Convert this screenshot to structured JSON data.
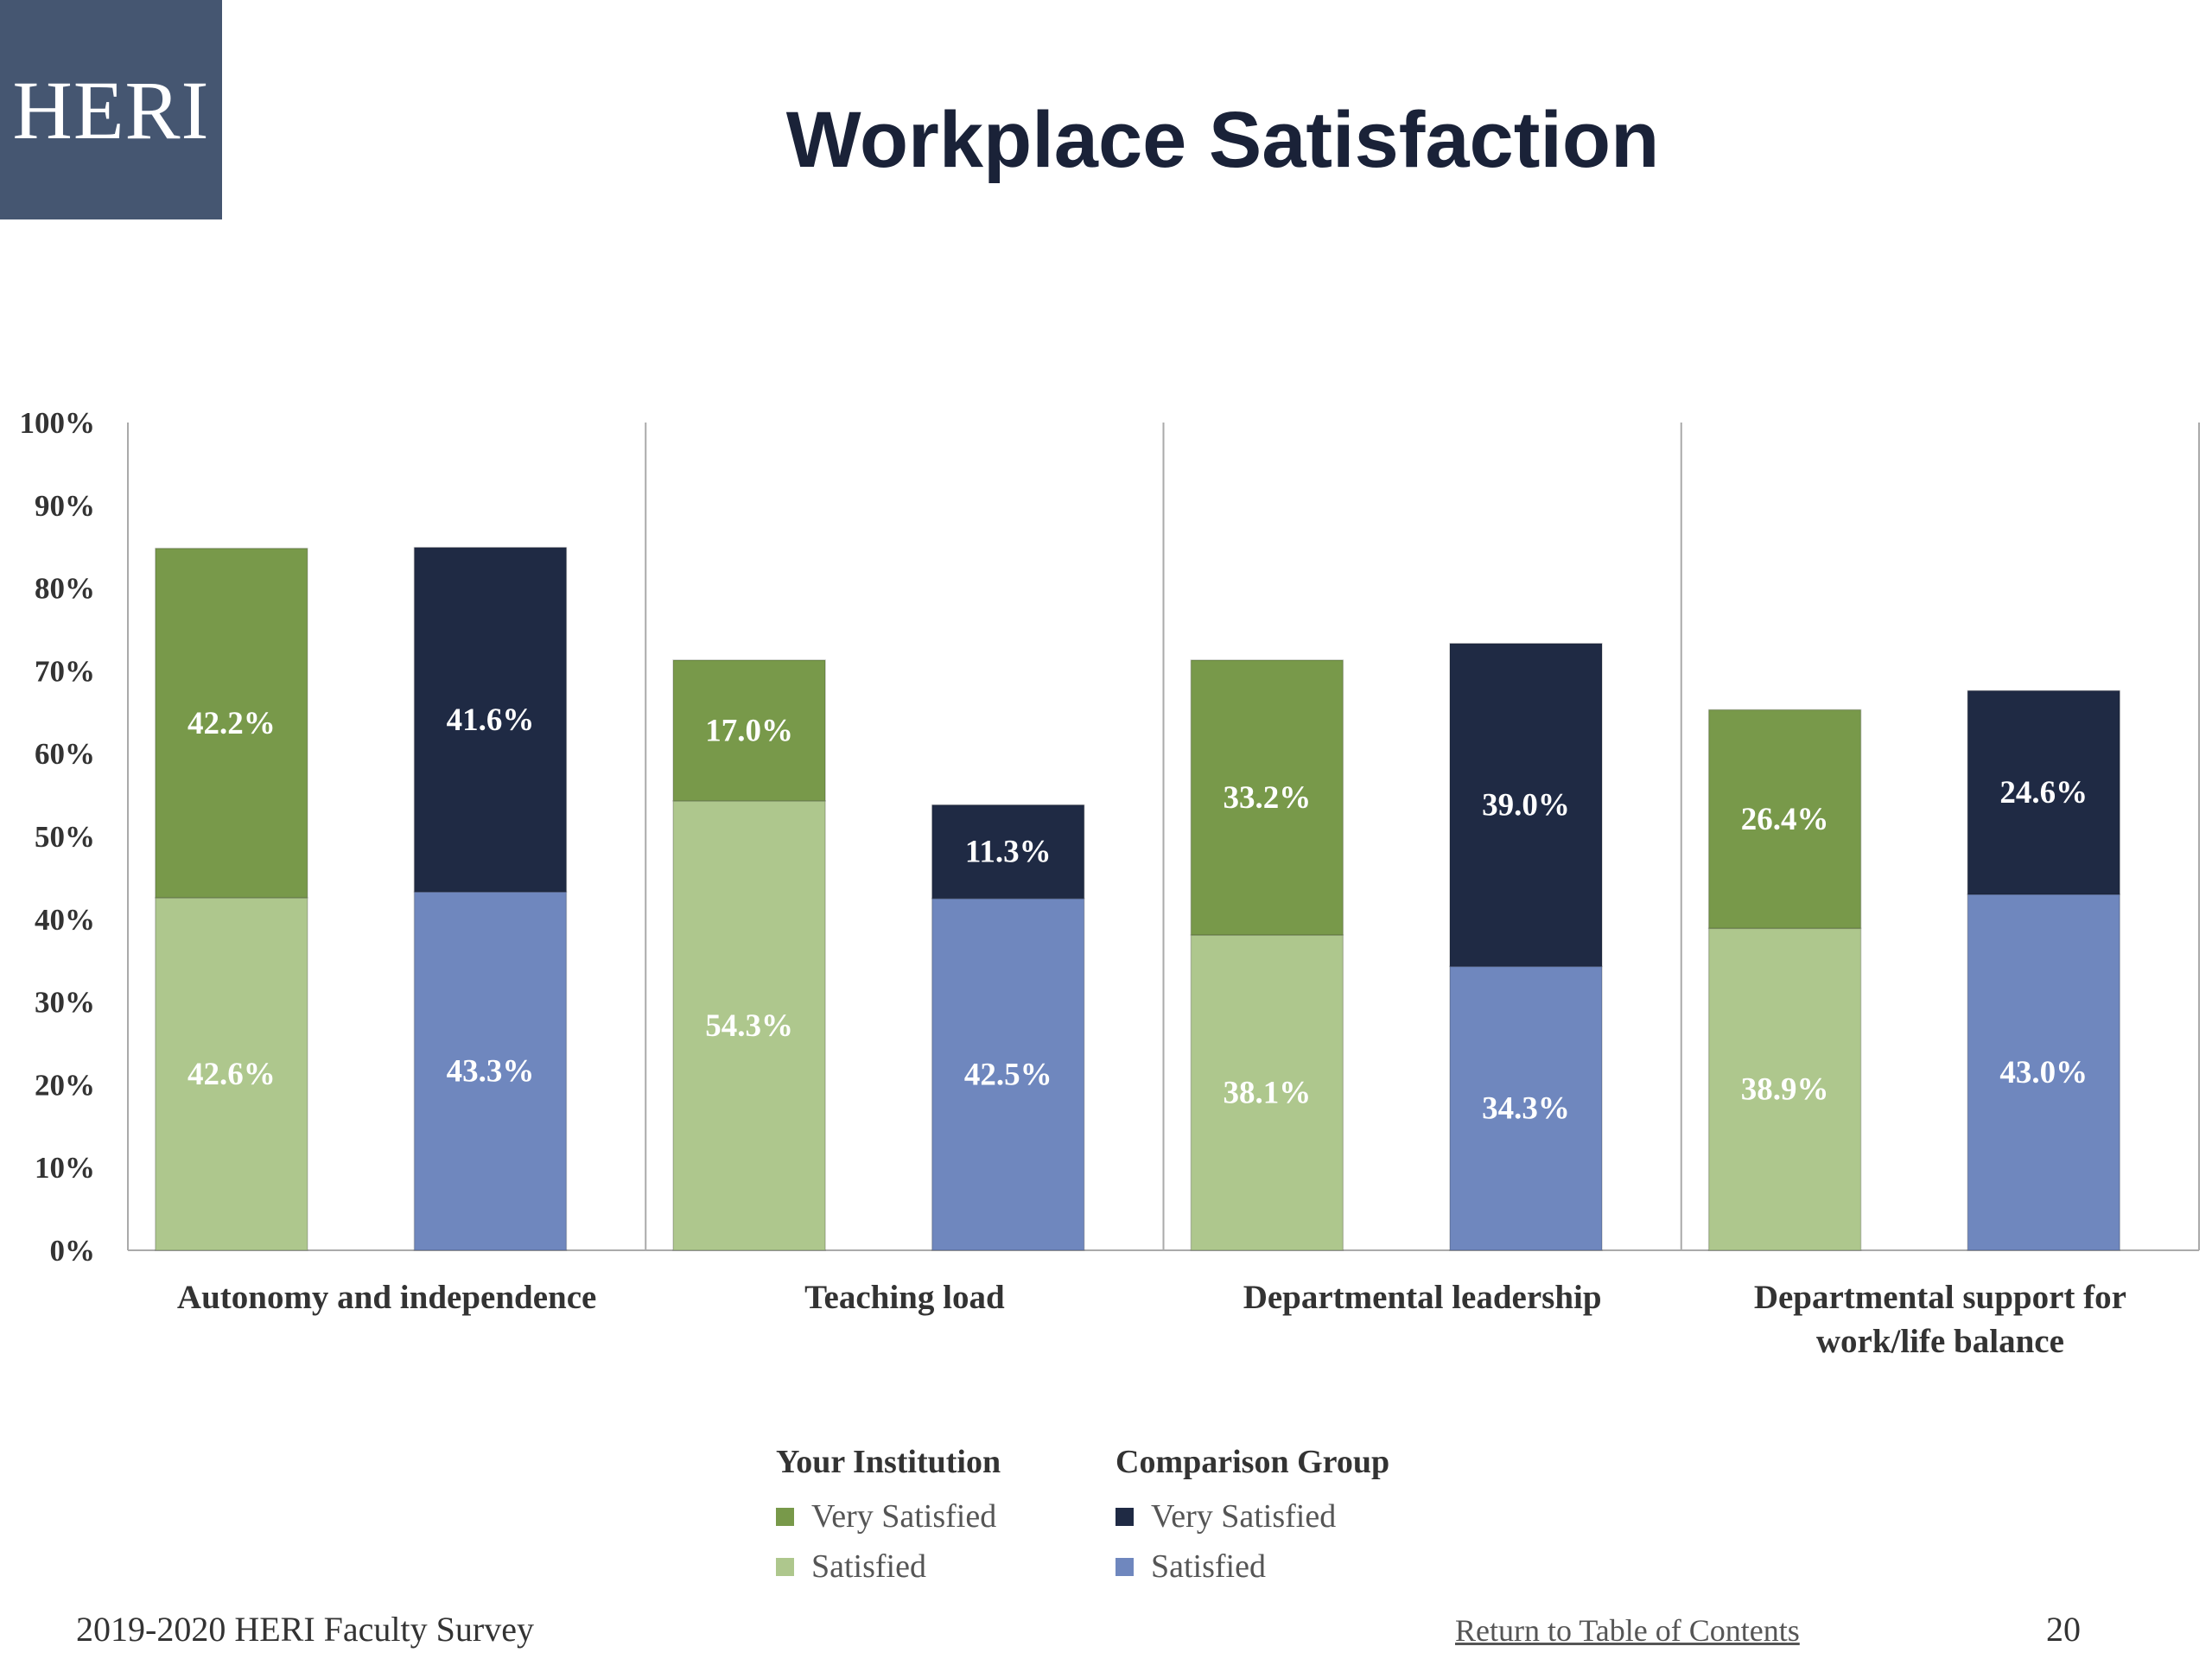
{
  "logo": {
    "text": "HERI"
  },
  "page": {
    "title": "Workplace Satisfaction",
    "footer_left": "2019-2020 HERI Faculty Survey",
    "footer_link": "Return to Table of Contents",
    "page_number": "20"
  },
  "legend": {
    "groups": [
      {
        "title": "Your Institution",
        "items": [
          {
            "label": "Very Satisfied",
            "color": "#78994a"
          },
          {
            "label": "Satisfied",
            "color": "#aec78d"
          }
        ]
      },
      {
        "title": "Comparison Group",
        "items": [
          {
            "label": "Very Satisfied",
            "color": "#1f2a44"
          },
          {
            "label": "Satisfied",
            "color": "#6f87be"
          }
        ]
      }
    ]
  },
  "chart_data": {
    "type": "bar",
    "stacked": true,
    "ylim": [
      0,
      100
    ],
    "yticks": [
      "0%",
      "10%",
      "20%",
      "30%",
      "40%",
      "50%",
      "60%",
      "70%",
      "80%",
      "90%",
      "100%"
    ],
    "categories": [
      "Autonomy and independence",
      "Teaching load",
      "Departmental leadership",
      "Departmental support for work/life balance"
    ],
    "category_lines": [
      [
        "Autonomy and independence"
      ],
      [
        "Teaching load"
      ],
      [
        "Departmental leadership"
      ],
      [
        "Departmental support for",
        "work/life balance"
      ]
    ],
    "series": [
      {
        "group": "Your Institution",
        "level": "Satisfied",
        "color": "#aec78d",
        "values": [
          42.6,
          54.3,
          38.1,
          38.9
        ]
      },
      {
        "group": "Your Institution",
        "level": "Very Satisfied",
        "color": "#78994a",
        "values": [
          42.2,
          17.0,
          33.2,
          26.4
        ]
      },
      {
        "group": "Comparison Group",
        "level": "Satisfied",
        "color": "#6f87be",
        "values": [
          43.3,
          42.5,
          34.3,
          43.0
        ]
      },
      {
        "group": "Comparison Group",
        "level": "Very Satisfied",
        "color": "#1f2a44",
        "values": [
          41.6,
          11.3,
          39.0,
          24.6
        ]
      }
    ],
    "grid": false
  }
}
